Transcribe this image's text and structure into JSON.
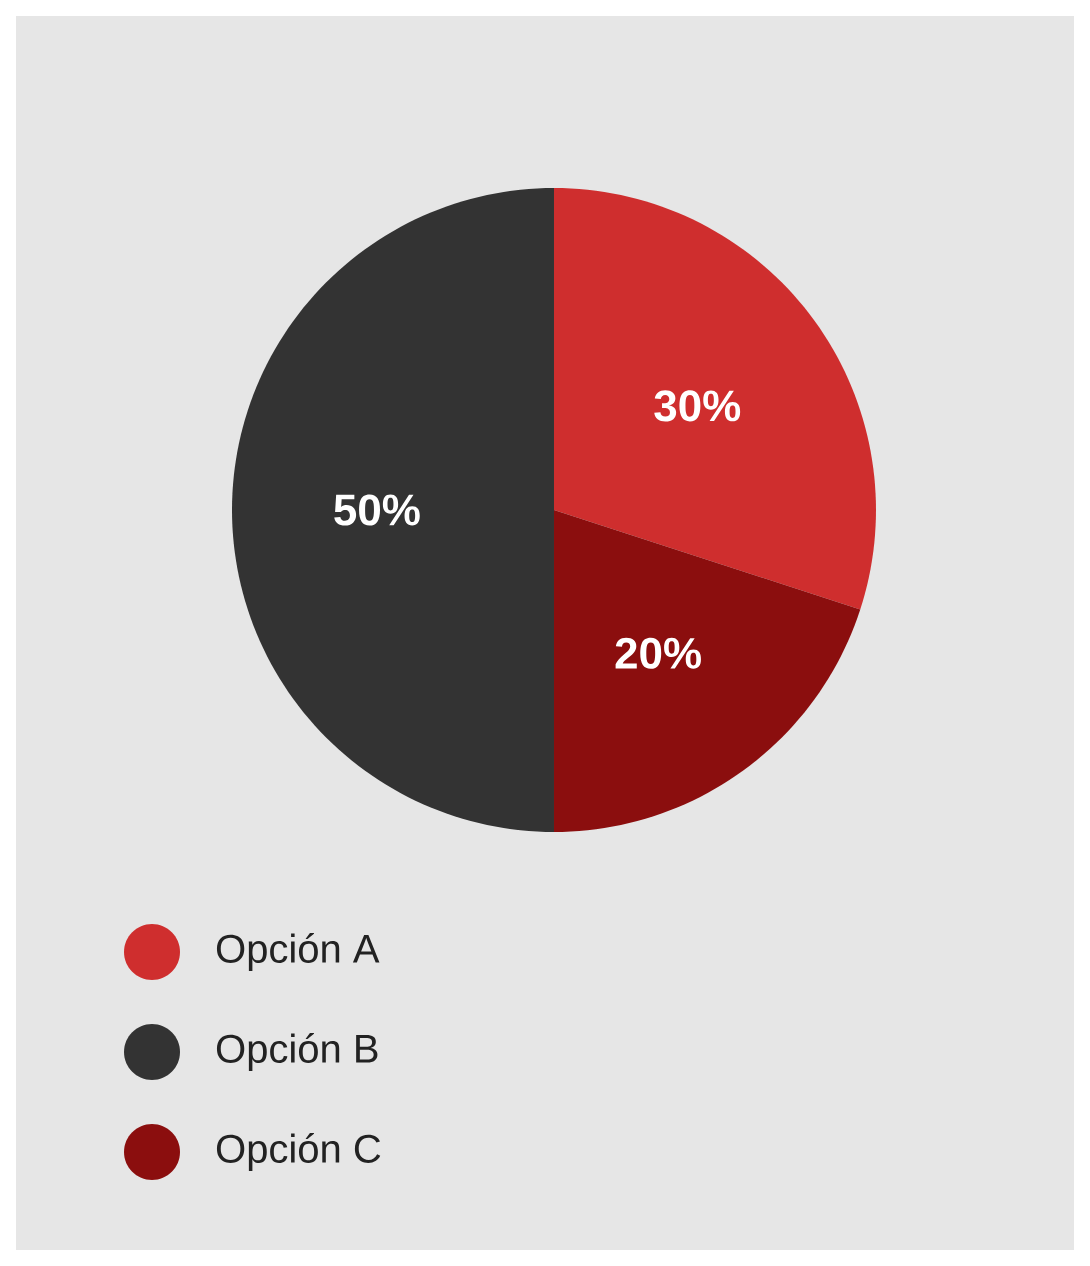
{
  "chart_data": {
    "type": "pie",
    "categories": [
      "Opción A",
      "Opción B",
      "Opción C"
    ],
    "values": [
      30,
      50,
      20
    ],
    "colors": [
      "#cf2e2e",
      "#333333",
      "#8b0e0e"
    ],
    "value_labels": [
      "30%",
      "50%",
      "20%"
    ],
    "legend": "bottom"
  }
}
